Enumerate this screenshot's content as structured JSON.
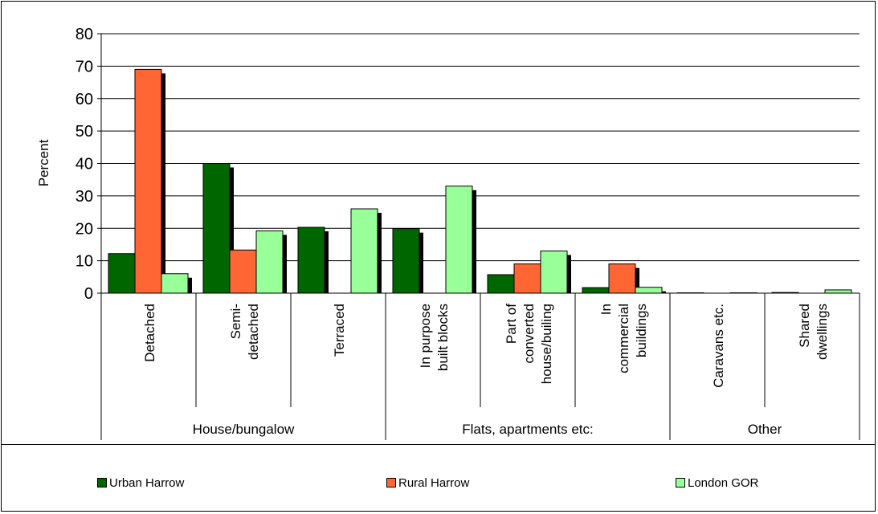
{
  "chart_data": {
    "type": "bar",
    "title": "",
    "ylabel": "Percent",
    "xlabel": "",
    "ylim": [
      0,
      80
    ],
    "yticks": [
      0,
      10,
      20,
      30,
      40,
      50,
      60,
      70,
      80
    ],
    "grid": true,
    "legend_position": "bottom",
    "categories": [
      "Detached",
      "Semi-detached",
      "Terraced",
      "In purpose built blocks",
      "Part of converted house/builing",
      "In commercial buildings",
      "Caravans etc.",
      "Shared dwellings"
    ],
    "category_lines": [
      [
        "Detached"
      ],
      [
        "Semi-",
        "detached"
      ],
      [
        "Terraced"
      ],
      [
        "In purpose",
        "built blocks"
      ],
      [
        "Part of",
        "converted",
        "house/builing"
      ],
      [
        "In",
        "commercial",
        "buildings"
      ],
      [
        "Caravans etc."
      ],
      [
        "Shared",
        "dwellings"
      ]
    ],
    "groups": [
      {
        "label": "House/bungalow",
        "count": 3
      },
      {
        "label": "Flats, apartments etc:",
        "count": 3
      },
      {
        "label": "Other",
        "count": 2
      }
    ],
    "series": [
      {
        "name": "Urban Harrow",
        "color": "#006600",
        "values": [
          12.2,
          40.0,
          20.3,
          19.9,
          5.7,
          1.7,
          0.1,
          0.2
        ]
      },
      {
        "name": "Rural Harrow",
        "color": "#FF6633",
        "values": [
          69.0,
          13.3,
          0,
          0,
          9.0,
          9.0,
          0,
          0
        ]
      },
      {
        "name": "London GOR",
        "color": "#99FF99",
        "values": [
          6.0,
          19.2,
          26.0,
          33.0,
          13.0,
          1.8,
          0.1,
          1.0
        ]
      }
    ]
  }
}
